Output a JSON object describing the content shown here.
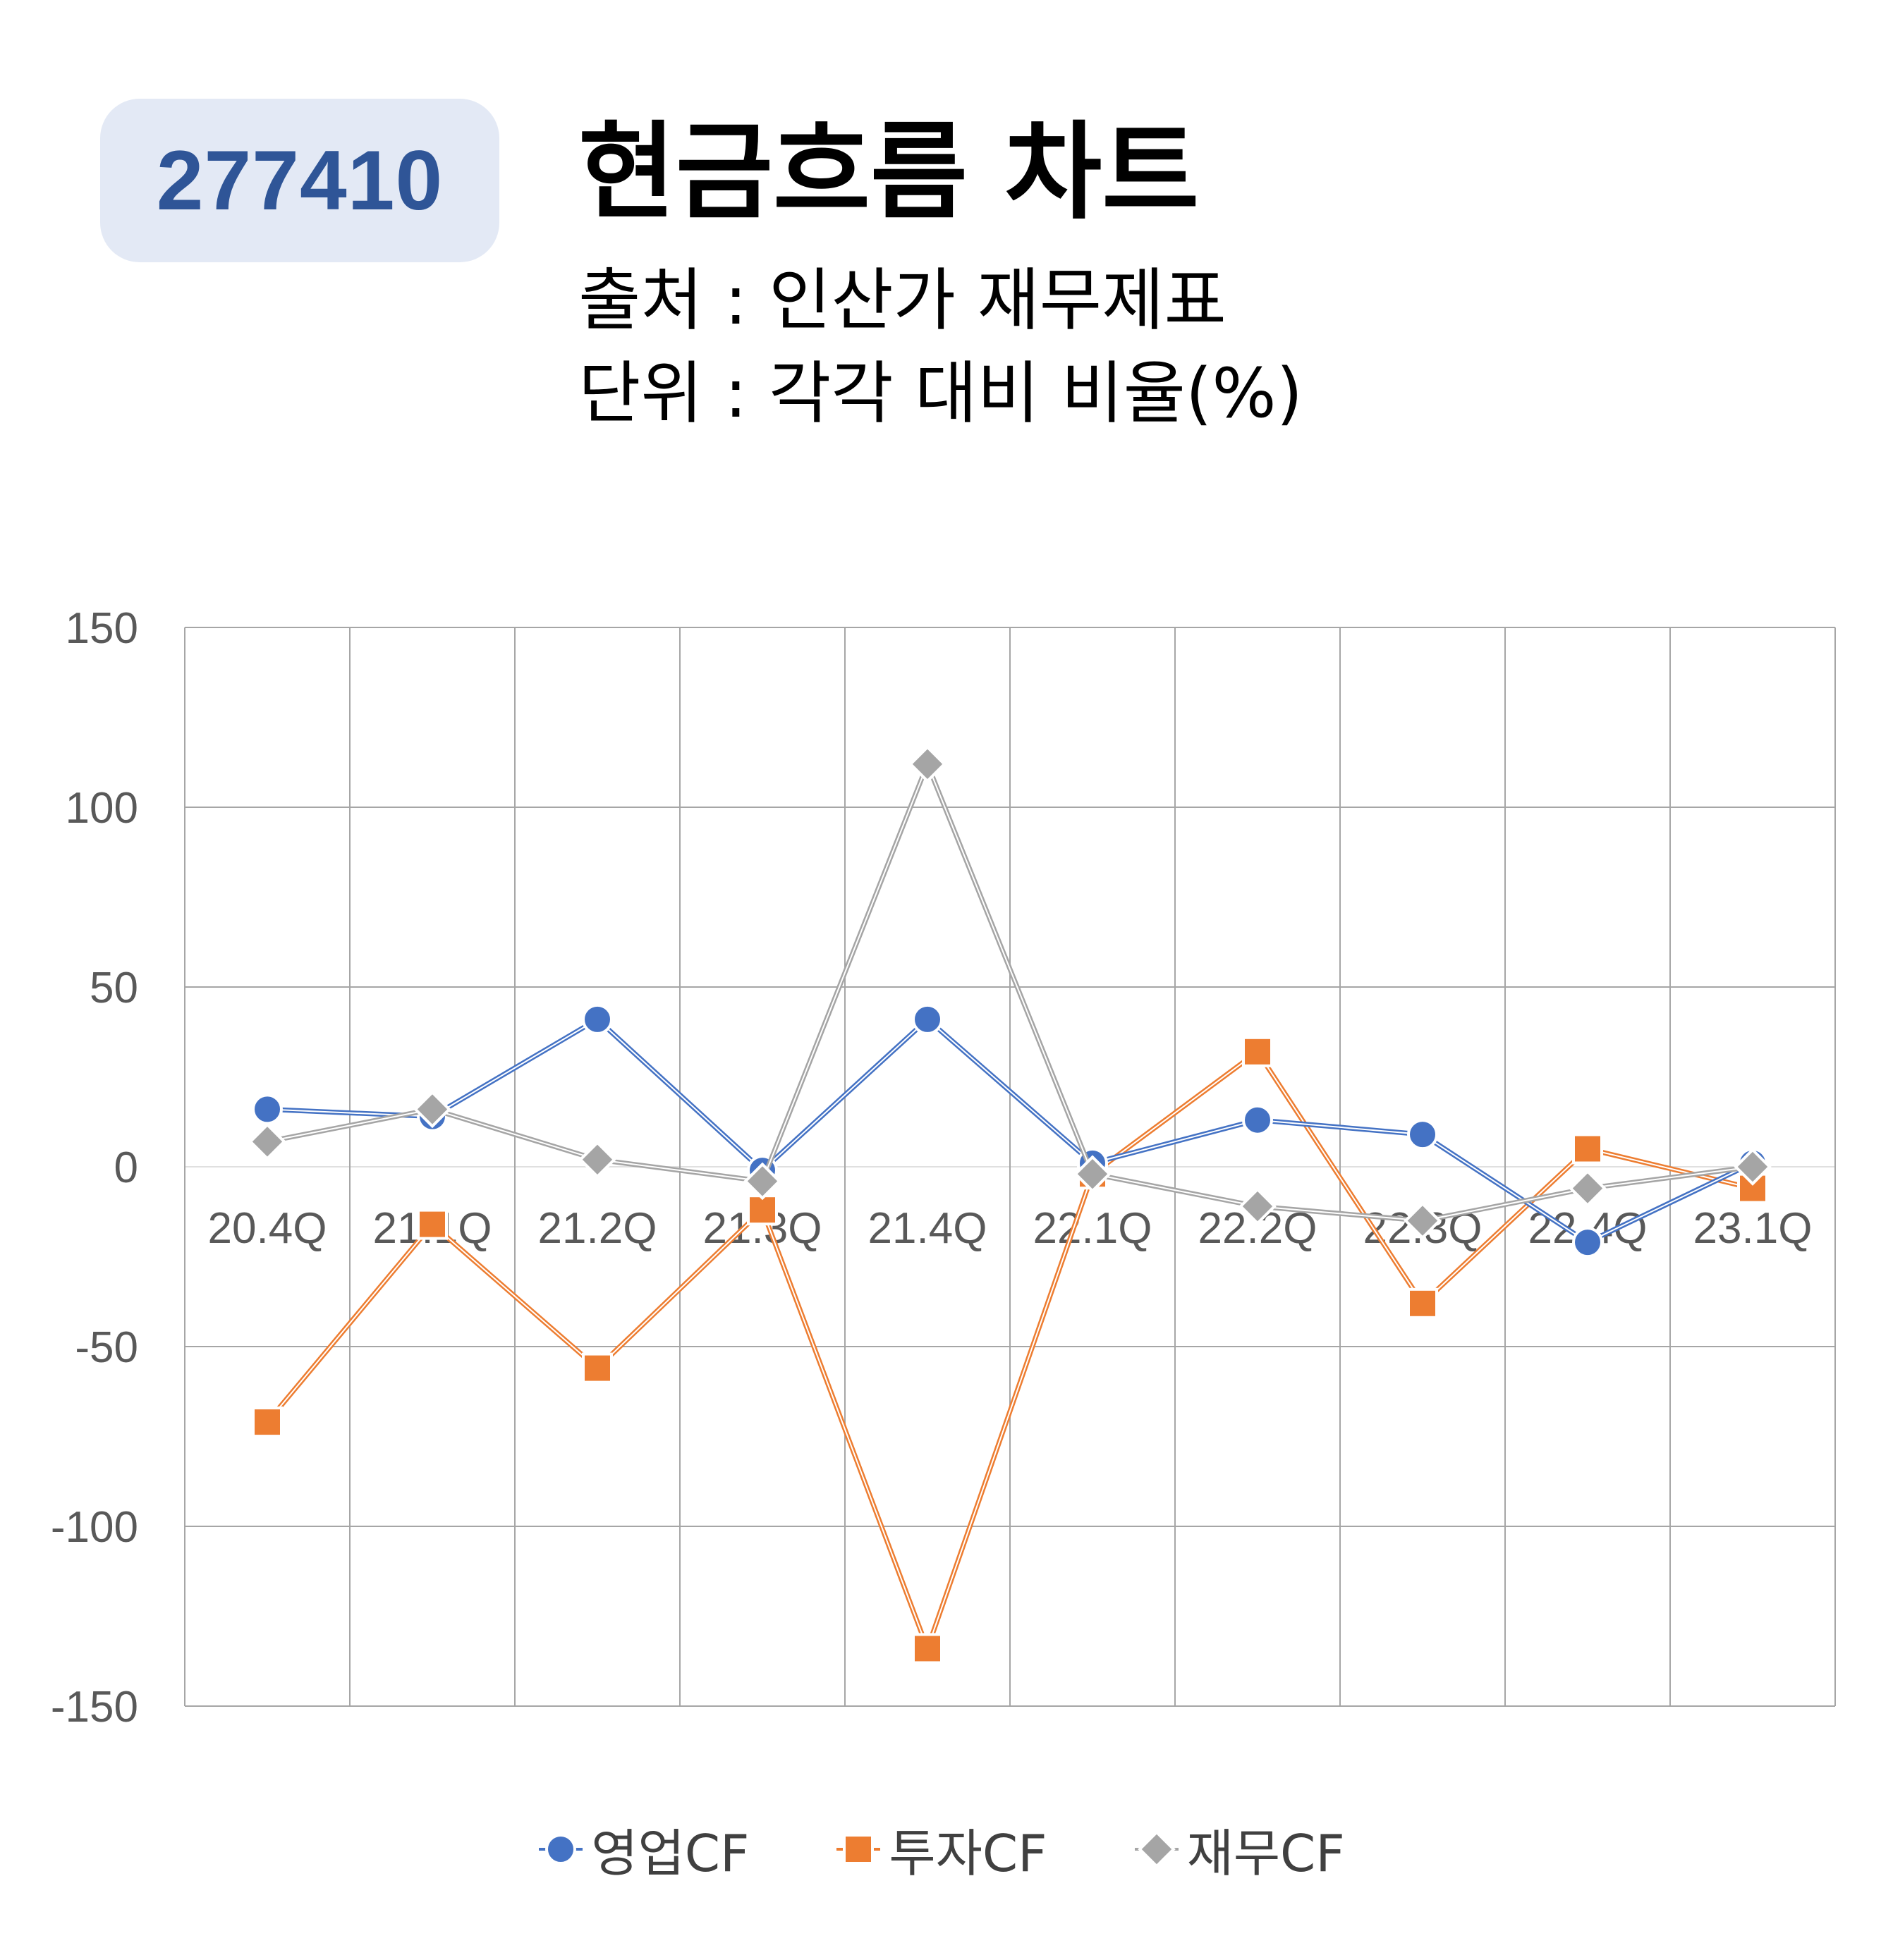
{
  "header": {
    "code": "277410",
    "title": "현금흐름 차트",
    "source": "출처 : 인산가 재무제표",
    "unit": "단위 : 각각 대비 비율(%)"
  },
  "chart_data": {
    "type": "line",
    "categories": [
      "20.4Q",
      "21.1Q",
      "21.2Q",
      "21.3Q",
      "21.4Q",
      "22.1Q",
      "22.2Q",
      "22.3Q",
      "22.4Q",
      "23.1Q"
    ],
    "ylim": [
      -150,
      150
    ],
    "yticks": [
      150,
      100,
      50,
      0,
      -50,
      -100,
      -150
    ],
    "grid": true,
    "legend": "bottom",
    "series": [
      {
        "name": "영업CF",
        "marker": "circle",
        "color": "#4472c4",
        "values": [
          16,
          14,
          41,
          -1,
          41,
          1,
          13,
          9,
          -21,
          1
        ]
      },
      {
        "name": "투자CF",
        "marker": "square",
        "color": "#ed7d31",
        "values": [
          -71,
          -16,
          -56,
          -12,
          -134,
          -2,
          32,
          -38,
          5,
          -6
        ]
      },
      {
        "name": "재무CF",
        "marker": "diamond",
        "color": "#a5a5a5",
        "values": [
          7,
          16,
          2,
          -4,
          112,
          -2,
          -11,
          -15,
          -6,
          0
        ]
      }
    ]
  }
}
